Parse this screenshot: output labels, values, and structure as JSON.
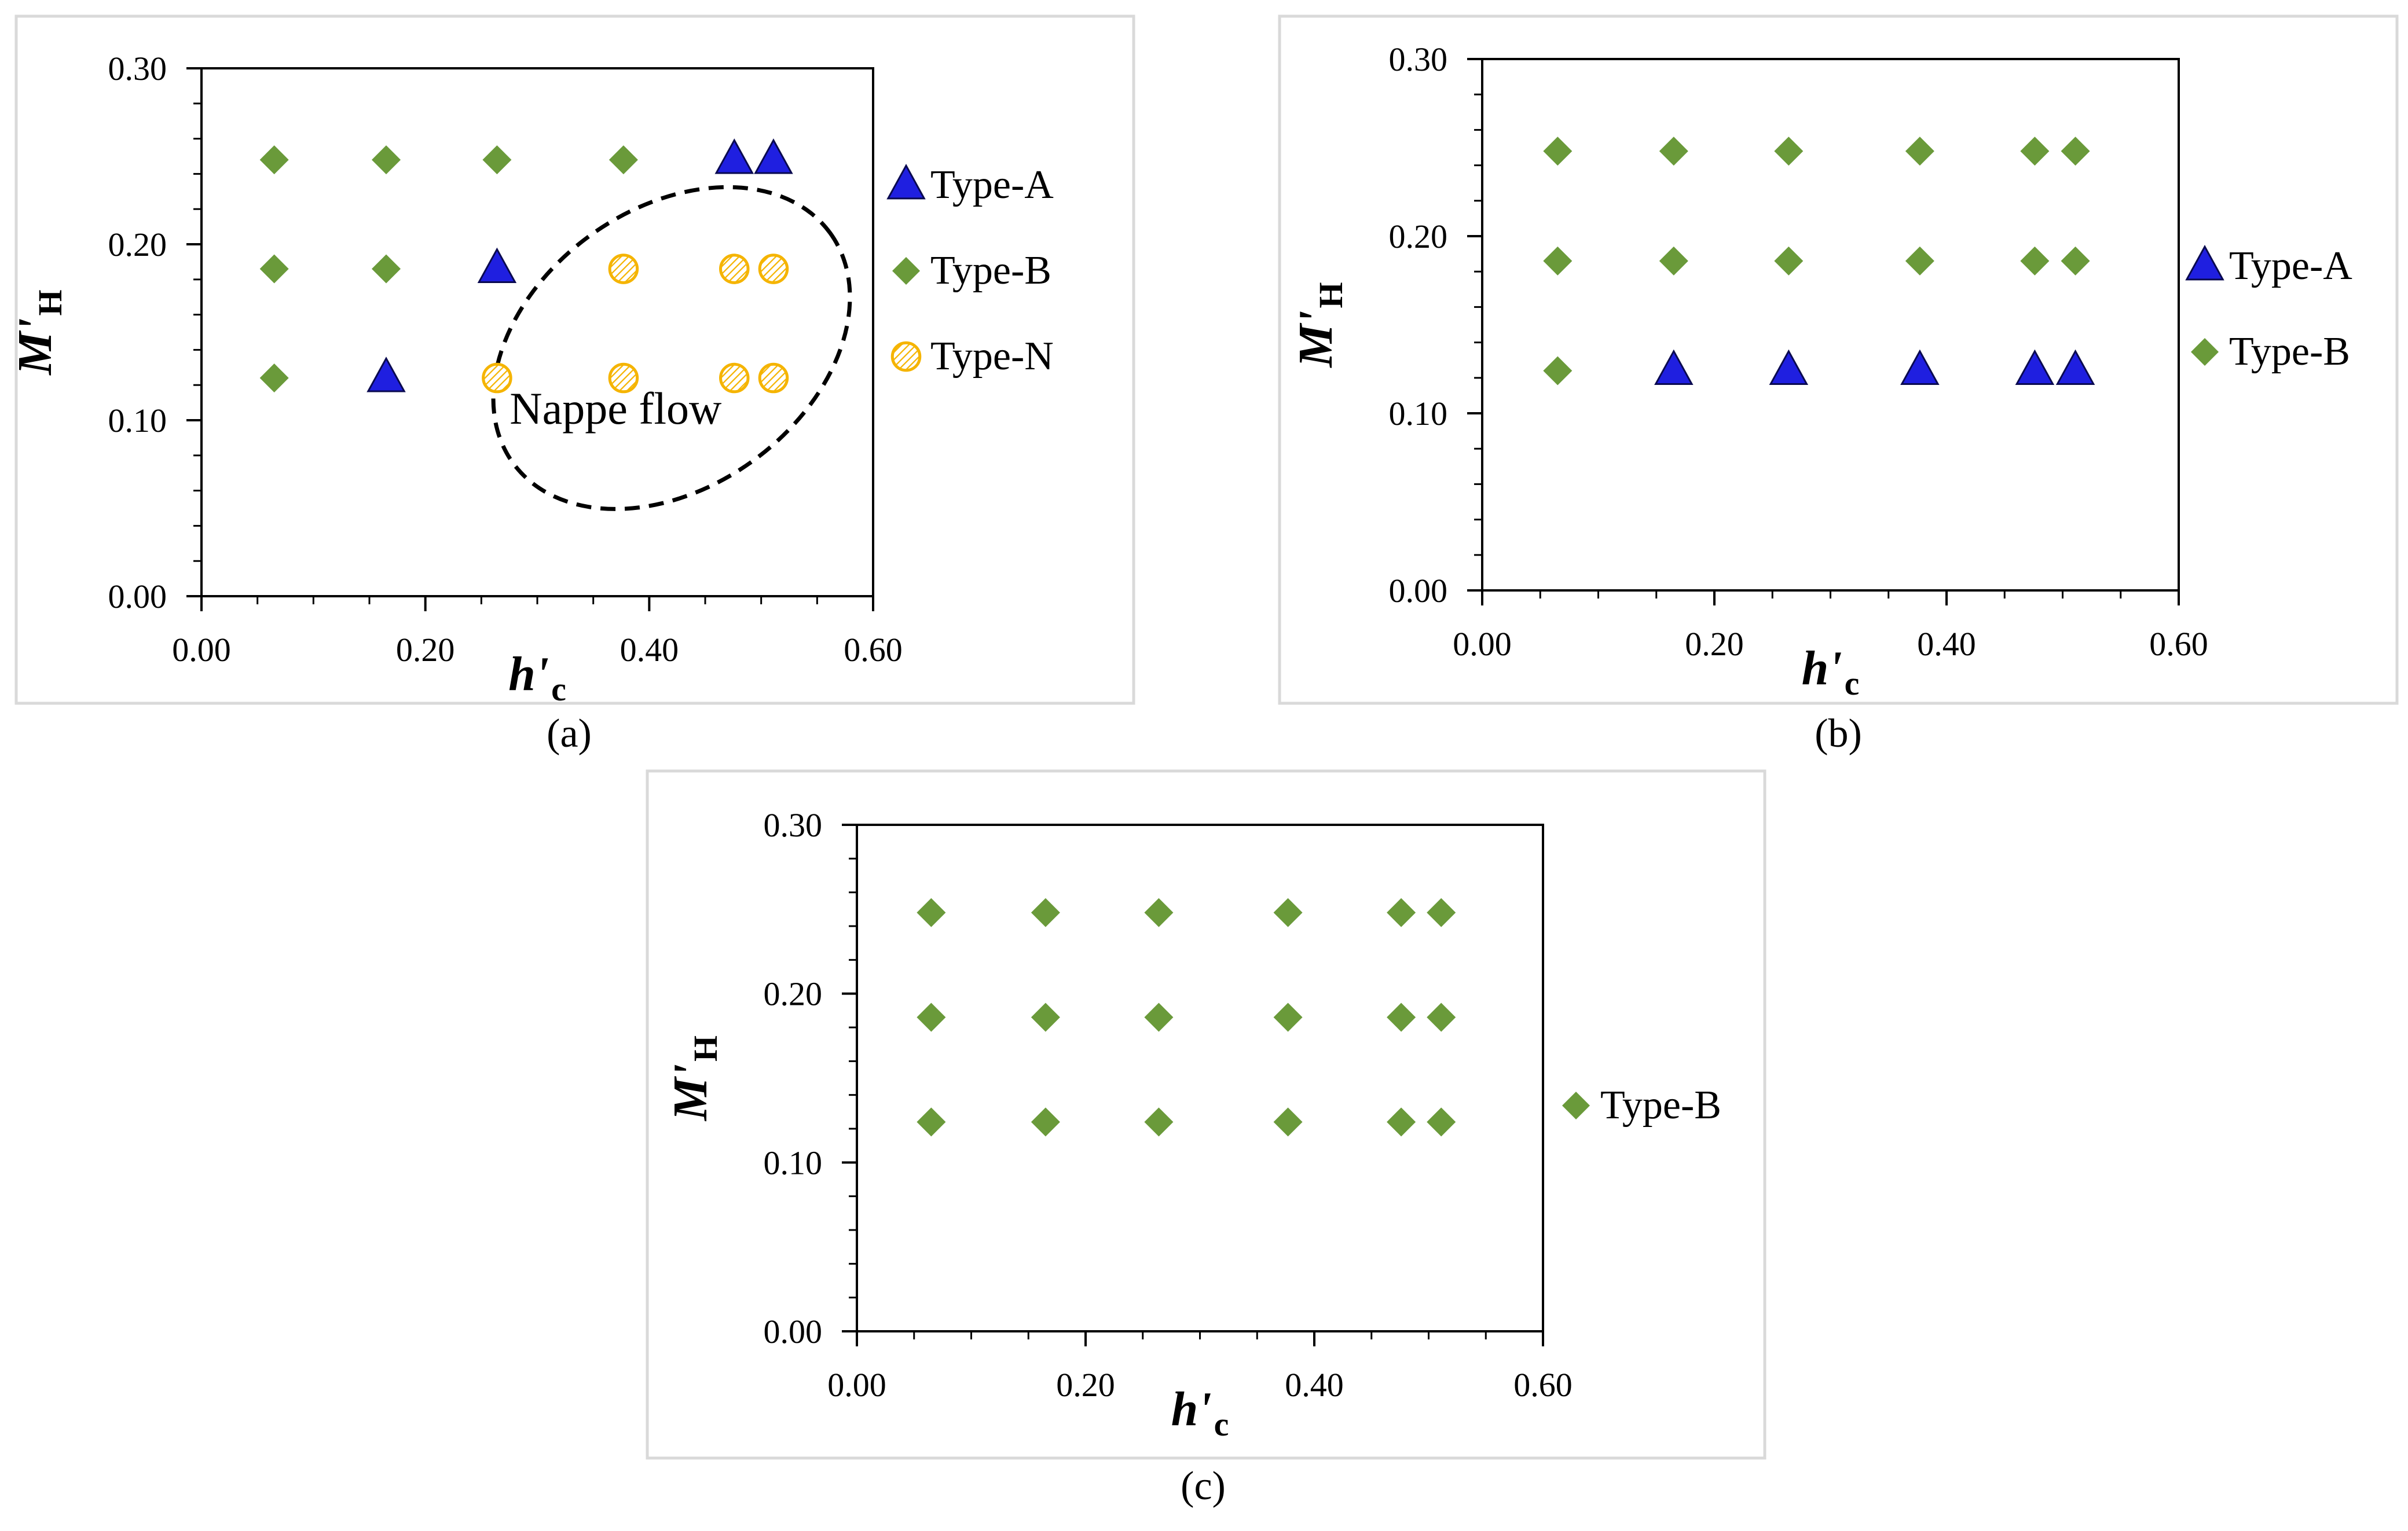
{
  "chart_data": [
    {
      "panel": "a",
      "type": "scatter",
      "caption": "(a)",
      "xlabel": "h'",
      "xlabel_sub": "c",
      "ylabel": "M'",
      "ylabel_sub": "H",
      "xlim": [
        0,
        0.6
      ],
      "ylim": [
        0,
        0.3
      ],
      "xticks": [
        "0.00",
        "0.20",
        "0.40",
        "0.60"
      ],
      "yticks": [
        "0.00",
        "0.10",
        "0.20",
        "0.30"
      ],
      "series": [
        {
          "name": "Type-A",
          "marker": "triangle",
          "color": "#1F1FE0",
          "points": [
            [
              0.165,
              0.124
            ],
            [
              0.264,
              0.186
            ],
            [
              0.476,
              0.248
            ],
            [
              0.511,
              0.248
            ]
          ]
        },
        {
          "name": "Type-B",
          "marker": "diamond",
          "color": "#6A9A3A",
          "points": [
            [
              0.065,
              0.124
            ],
            [
              0.065,
              0.186
            ],
            [
              0.065,
              0.248
            ],
            [
              0.165,
              0.186
            ],
            [
              0.165,
              0.248
            ],
            [
              0.264,
              0.248
            ],
            [
              0.377,
              0.248
            ]
          ]
        },
        {
          "name": "Type-N",
          "marker": "hatched-circle",
          "color": "#F5B400",
          "points": [
            [
              0.264,
              0.124
            ],
            [
              0.377,
              0.124
            ],
            [
              0.377,
              0.186
            ],
            [
              0.476,
              0.124
            ],
            [
              0.476,
              0.186
            ],
            [
              0.511,
              0.124
            ],
            [
              0.511,
              0.186
            ]
          ]
        }
      ],
      "annotations": [
        {
          "text": "Nappe flow",
          "shape": "dashed-ellipse",
          "center": [
            0.42,
            0.141
          ],
          "radii": [
            0.175,
            0.079
          ],
          "rotation_deg": -36
        }
      ]
    },
    {
      "panel": "b",
      "type": "scatter",
      "caption": "(b)",
      "xlabel": "h'",
      "xlabel_sub": "c",
      "ylabel": "M'",
      "ylabel_sub": "H",
      "xlim": [
        0,
        0.6
      ],
      "ylim": [
        0,
        0.3
      ],
      "xticks": [
        "0.00",
        "0.20",
        "0.40",
        "0.60"
      ],
      "yticks": [
        "0.00",
        "0.10",
        "0.20",
        "0.30"
      ],
      "series": [
        {
          "name": "Type-A",
          "marker": "triangle",
          "color": "#1F1FE0",
          "points": [
            [
              0.165,
              0.124
            ],
            [
              0.264,
              0.124
            ],
            [
              0.377,
              0.124
            ],
            [
              0.476,
              0.124
            ],
            [
              0.511,
              0.124
            ]
          ]
        },
        {
          "name": "Type-B",
          "marker": "diamond",
          "color": "#6A9A3A",
          "points": [
            [
              0.065,
              0.124
            ],
            [
              0.065,
              0.186
            ],
            [
              0.065,
              0.248
            ],
            [
              0.165,
              0.186
            ],
            [
              0.165,
              0.248
            ],
            [
              0.264,
              0.186
            ],
            [
              0.264,
              0.248
            ],
            [
              0.377,
              0.186
            ],
            [
              0.377,
              0.248
            ],
            [
              0.476,
              0.186
            ],
            [
              0.476,
              0.248
            ],
            [
              0.511,
              0.186
            ],
            [
              0.511,
              0.248
            ]
          ]
        }
      ],
      "annotations": []
    },
    {
      "panel": "c",
      "type": "scatter",
      "caption": "(c)",
      "xlabel": "h'",
      "xlabel_sub": "c",
      "ylabel": "M'",
      "ylabel_sub": "H",
      "xlim": [
        0,
        0.6
      ],
      "ylim": [
        0,
        0.3
      ],
      "xticks": [
        "0.00",
        "0.20",
        "0.40",
        "0.60"
      ],
      "yticks": [
        "0.00",
        "0.10",
        "0.20",
        "0.30"
      ],
      "series": [
        {
          "name": "Type-B",
          "marker": "diamond",
          "color": "#6A9A3A",
          "points": [
            [
              0.065,
              0.124
            ],
            [
              0.065,
              0.186
            ],
            [
              0.065,
              0.248
            ],
            [
              0.165,
              0.124
            ],
            [
              0.165,
              0.186
            ],
            [
              0.165,
              0.248
            ],
            [
              0.264,
              0.124
            ],
            [
              0.264,
              0.186
            ],
            [
              0.264,
              0.248
            ],
            [
              0.377,
              0.124
            ],
            [
              0.377,
              0.186
            ],
            [
              0.377,
              0.248
            ],
            [
              0.476,
              0.124
            ],
            [
              0.476,
              0.186
            ],
            [
              0.476,
              0.248
            ],
            [
              0.511,
              0.124
            ],
            [
              0.511,
              0.186
            ],
            [
              0.511,
              0.248
            ]
          ]
        }
      ],
      "annotations": []
    }
  ]
}
